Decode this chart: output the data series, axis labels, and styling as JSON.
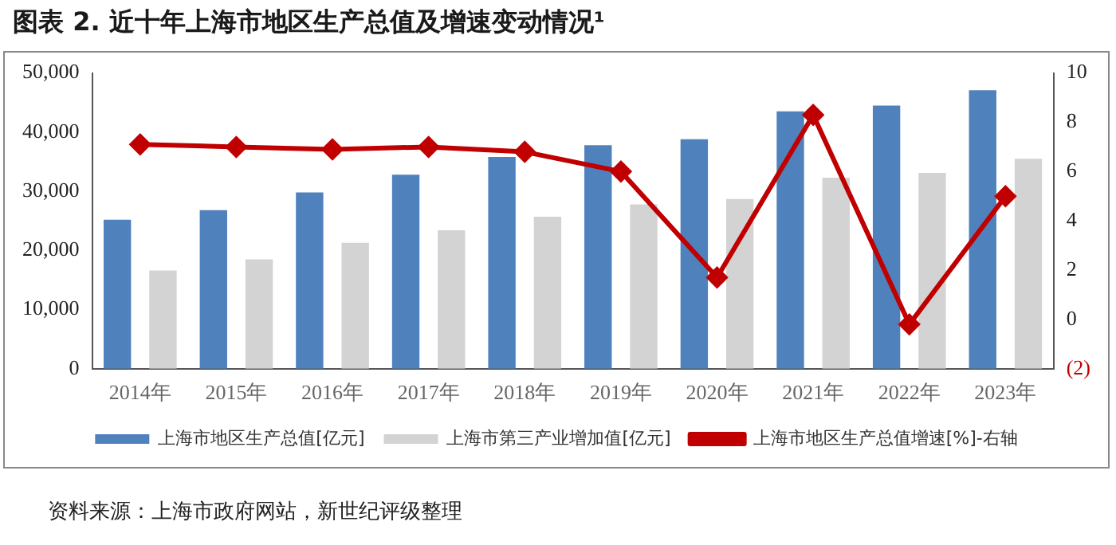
{
  "chart_data": {
    "type": "bar",
    "title": "图表 2.  近十年上海市地区生产总值及增速变动情况¹",
    "categories": [
      "2014年",
      "2015年",
      "2016年",
      "2017年",
      "2018年",
      "2019年",
      "2020年",
      "2021年",
      "2022年",
      "2023年"
    ],
    "series": [
      {
        "name": "上海市地区生产总值[亿元]",
        "color": "#4f81bd",
        "values": [
          25200,
          26800,
          29800,
          32800,
          35800,
          37800,
          38800,
          43500,
          44500,
          47100
        ]
      },
      {
        "name": "上海市第三产业增加值[亿元]",
        "color": "#d3d3d3",
        "values": [
          16600,
          18500,
          21300,
          23400,
          25700,
          27800,
          28700,
          32300,
          33100,
          35500
        ]
      },
      {
        "name": "上海市地区生产总值增速[%]-右轴",
        "type": "line",
        "axis": "y2",
        "color": "#c00000",
        "values": [
          7.1,
          7.0,
          6.9,
          7.0,
          6.8,
          6.0,
          1.7,
          8.3,
          -0.2,
          5.0
        ]
      }
    ],
    "ylim": [
      0,
      50000
    ],
    "yticks": [
      0,
      {
        "value": 10000,
        "label": "10,000"
      },
      {
        "value": 20000,
        "label": "20,000"
      },
      {
        "value": 30000,
        "label": "30,000"
      },
      {
        "value": 40000,
        "label": "40,000"
      },
      {
        "value": 50000,
        "label": "50,000"
      }
    ],
    "y2lim": [
      -2,
      10
    ],
    "y2ticks": [
      {
        "value": -2,
        "label": "(2)"
      },
      0,
      2,
      4,
      6,
      8,
      10
    ],
    "grid": false,
    "legend": "bottom",
    "marker": "diamond",
    "line_style": "solid",
    "annotations": [
      "资料来源：上海市政府网站，新世纪评级整理"
    ]
  }
}
